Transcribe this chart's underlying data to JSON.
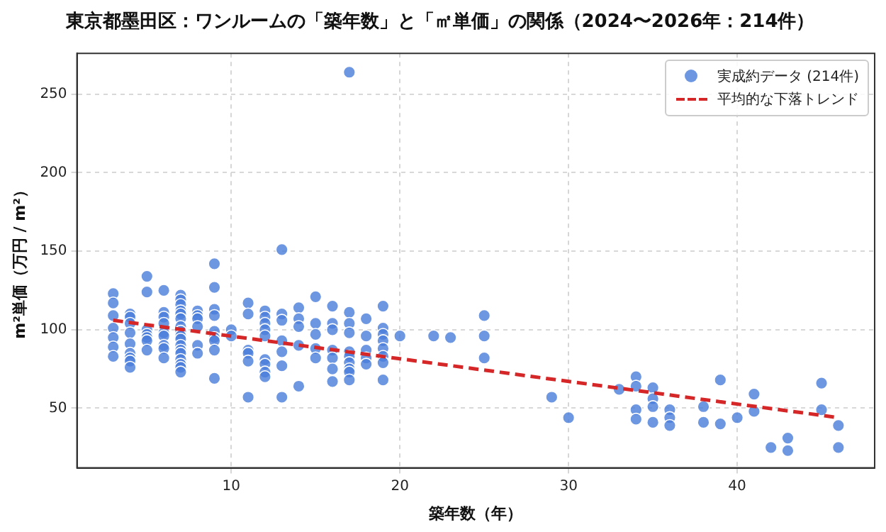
{
  "chart_data": {
    "type": "scatter",
    "title": "東京都墨田区：ワンルームの「築年数」と「㎡単価」の関係（2024〜2026年：214件）",
    "xlabel": "築年数（年）",
    "ylabel": "m²単価（万円 / m²）",
    "xlim": [
      0.85,
      48.15
    ],
    "ylim": [
      12,
      276
    ],
    "xticks": [
      10,
      20,
      30,
      40
    ],
    "yticks": [
      50,
      100,
      150,
      200,
      250
    ],
    "grid": true,
    "legend": "top right",
    "series": [
      {
        "name": "実成約データ (214件)",
        "type": "scatter",
        "marker": "circle",
        "color": "#4a7ddb",
        "x": [
          3,
          3,
          3,
          3,
          3,
          3,
          3,
          4,
          4,
          4,
          4,
          4,
          4,
          4,
          4,
          4,
          5,
          5,
          5,
          5,
          5,
          5,
          5,
          6,
          6,
          6,
          6,
          6,
          6,
          6,
          6,
          6,
          7,
          7,
          7,
          7,
          7,
          7,
          7,
          7,
          7,
          7,
          7,
          7,
          7,
          7,
          7,
          7,
          7,
          8,
          8,
          8,
          8,
          8,
          8,
          9,
          9,
          9,
          9,
          9,
          9,
          9,
          9,
          9,
          10,
          10,
          11,
          11,
          11,
          11,
          11,
          11,
          12,
          12,
          12,
          12,
          12,
          12,
          12,
          12,
          12,
          13,
          13,
          13,
          13,
          13,
          13,
          13,
          14,
          14,
          14,
          14,
          14,
          15,
          15,
          15,
          15,
          15,
          16,
          16,
          16,
          16,
          16,
          16,
          16,
          17,
          17,
          17,
          17,
          17,
          17,
          17,
          17,
          17,
          17,
          18,
          18,
          18,
          18,
          18,
          19,
          19,
          19,
          19,
          19,
          19,
          19,
          19,
          20,
          22,
          23,
          25,
          25,
          25,
          29,
          30,
          33,
          34,
          34,
          34,
          34,
          35,
          35,
          35,
          35,
          36,
          36,
          36,
          38,
          38,
          39,
          39,
          40,
          41,
          41,
          42,
          43,
          43,
          45,
          45,
          46,
          46
        ],
        "values": [
          123,
          117,
          109,
          101,
          95,
          89,
          83,
          110,
          108,
          104,
          98,
          91,
          85,
          82,
          80,
          76,
          134,
          124,
          100,
          97,
          95,
          93,
          87,
          125,
          111,
          108,
          104,
          98,
          96,
          90,
          88,
          82,
          122,
          119,
          116,
          112,
          110,
          107,
          102,
          99,
          96,
          94,
          90,
          87,
          85,
          81,
          78,
          76,
          73,
          112,
          109,
          107,
          102,
          90,
          85,
          142,
          127,
          113,
          109,
          99,
          95,
          93,
          87,
          69,
          100,
          96,
          117,
          110,
          87,
          85,
          80,
          57,
          112,
          108,
          104,
          100,
          96,
          81,
          78,
          73,
          70,
          151,
          110,
          106,
          93,
          86,
          77,
          57,
          114,
          107,
          102,
          90,
          64,
          121,
          104,
          97,
          88,
          82,
          115,
          104,
          100,
          87,
          82,
          75,
          67,
          264,
          111,
          104,
          98,
          86,
          83,
          79,
          75,
          73,
          68,
          107,
          96,
          87,
          82,
          78,
          115,
          101,
          97,
          93,
          88,
          83,
          79,
          68,
          96,
          96,
          95,
          109,
          96,
          82,
          57,
          44,
          62,
          70,
          64,
          49,
          43,
          63,
          56,
          51,
          41,
          49,
          44,
          39,
          51,
          41,
          68,
          40,
          44,
          59,
          48,
          25,
          31,
          23,
          66,
          49,
          39,
          25
        ]
      },
      {
        "name": "平均的な下落トレンド",
        "type": "line",
        "marker": "none",
        "line_style": "dashed",
        "color": "#d62728",
        "x": [
          3,
          46
        ],
        "values": [
          106,
          44
        ]
      }
    ]
  }
}
